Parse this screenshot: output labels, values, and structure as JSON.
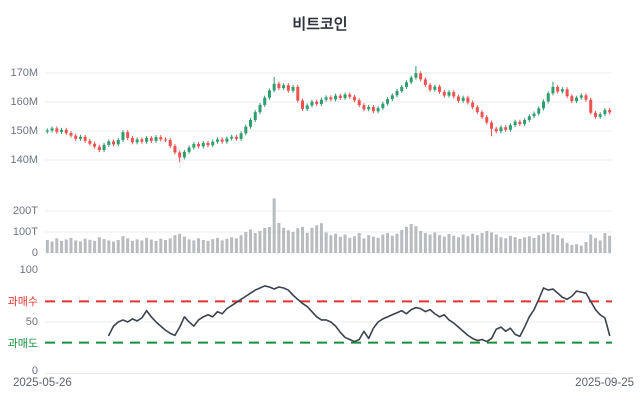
{
  "title": "비트코인",
  "x_axis": {
    "start_date": "2025-05-26",
    "end_date": "2025-09-25"
  },
  "colors": {
    "up": "#2f9e6f",
    "down": "#ef5350",
    "volume_bar": "#b9bcbe",
    "oscillator_line": "#3d434e",
    "overbought_line": "#e5332d",
    "oversold_line": "#17903c",
    "grid": "#ebedf0",
    "axis_label": "#6e7480",
    "title_text": "#2c313c"
  },
  "chart_data": [
    {
      "type": "candlestick",
      "name": "price",
      "title": "비트코인",
      "unit": "M",
      "ylim": [
        131,
        176
      ],
      "yticks": [
        140,
        150,
        160,
        170
      ],
      "ytick_labels": [
        "140M",
        "150M",
        "160M",
        "170M"
      ],
      "x_range": [
        "2025-05-26",
        "2025-09-25"
      ],
      "grid": true,
      "first_open": 149.8,
      "default_wick": 0.7,
      "closes": [
        150.2,
        150.9,
        149.7,
        150.4,
        149.3,
        148.4,
        147.3,
        148.0,
        146.6,
        145.6,
        144.6,
        143.4,
        145.2,
        146.4,
        145.4,
        146.9,
        149.6,
        147.6,
        146.1,
        147.1,
        146.3,
        147.6,
        146.6,
        147.9,
        147.1,
        146.9,
        144.8,
        142.6,
        140.9,
        142.8,
        144.3,
        145.5,
        144.7,
        145.9,
        145.1,
        146.3,
        147.1,
        146.3,
        147.4,
        148.0,
        147.3,
        149.2,
        151.5,
        153.8,
        156.5,
        159.0,
        161.5,
        164.0,
        166.3,
        164.8,
        165.8,
        163.9,
        165.2,
        160.5,
        157.6,
        158.8,
        160.1,
        159.3,
        160.8,
        161.6,
        160.9,
        162.2,
        161.4,
        162.6,
        161.8,
        160.6,
        158.9,
        157.5,
        158.3,
        156.8,
        157.9,
        159.4,
        161.0,
        162.3,
        163.8,
        165.2,
        166.8,
        168.4,
        169.9,
        167.8,
        165.9,
        164.2,
        165.3,
        163.5,
        162.2,
        163.4,
        161.9,
        160.4,
        161.5,
        159.8,
        158.2,
        156.5,
        154.8,
        152.9,
        150.8,
        149.9,
        151.3,
        150.4,
        152.0,
        153.2,
        152.4,
        153.8,
        155.1,
        156.0,
        157.8,
        160.2,
        163.0,
        165.2,
        163.6,
        164.4,
        162.0,
        160.3,
        161.5,
        162.3,
        160.8,
        156.3,
        154.9,
        155.8,
        157.2,
        156.4
      ],
      "special_wicks": {
        "28": {
          "low": 139.2
        },
        "48": {
          "high": 168.6
        },
        "78": {
          "high": 172.4
        },
        "94": {
          "low": 148.2
        },
        "107": {
          "high": 167.0
        }
      }
    },
    {
      "type": "bar",
      "name": "volume",
      "unit": "T",
      "ylim": [
        0,
        280
      ],
      "yticks": [
        0,
        100,
        200
      ],
      "ytick_labels": [
        "0",
        "100T",
        "200T"
      ],
      "grid": true,
      "values": [
        62,
        55,
        70,
        58,
        65,
        72,
        60,
        55,
        68,
        63,
        58,
        75,
        66,
        60,
        54,
        62,
        80,
        70,
        58,
        65,
        60,
        72,
        64,
        58,
        68,
        62,
        70,
        85,
        92,
        78,
        65,
        60,
        70,
        62,
        58,
        66,
        72,
        60,
        68,
        75,
        70,
        85,
        100,
        112,
        95,
        105,
        120,
        124,
        260,
        143,
        120,
        108,
        100,
        118,
        125,
        96,
        120,
        132,
        142,
        98,
        85,
        92,
        78,
        88,
        72,
        80,
        95,
        70,
        85,
        78,
        72,
        88,
        95,
        82,
        92,
        110,
        125,
        138,
        128,
        105,
        95,
        88,
        98,
        85,
        78,
        90,
        82,
        75,
        88,
        80,
        92,
        85,
        95,
        105,
        98,
        88,
        75,
        70,
        82,
        76,
        68,
        75,
        80,
        72,
        85,
        92,
        98,
        90,
        85,
        70,
        48,
        38,
        42,
        35,
        52,
        88,
        72,
        60,
        95,
        82
      ]
    },
    {
      "type": "line",
      "name": "oscillator",
      "ylim": [
        0,
        100
      ],
      "yticks": [
        0,
        50,
        100
      ],
      "ytick_labels": [
        "0",
        "50",
        "100"
      ],
      "grid": true,
      "legend_position": "none",
      "overbought": {
        "label": "과매수",
        "value": 70,
        "color": "#e5332d"
      },
      "oversold": {
        "label": "과매도",
        "value": 30,
        "color": "#17903c"
      },
      "values": [
        null,
        null,
        null,
        null,
        null,
        null,
        null,
        null,
        null,
        null,
        null,
        null,
        null,
        37,
        46,
        50,
        52,
        50,
        53,
        51,
        54,
        61,
        55,
        50,
        46,
        42,
        39,
        37,
        45,
        55,
        50,
        46,
        52,
        55,
        57,
        55,
        60,
        58,
        63,
        66,
        69,
        72,
        75,
        78,
        81,
        83,
        85,
        84,
        82,
        84,
        83,
        81,
        76,
        72,
        68,
        65,
        60,
        55,
        52,
        52,
        50,
        46,
        40,
        35,
        33,
        31,
        33,
        41,
        34,
        44,
        50,
        53,
        55,
        57,
        59,
        61,
        58,
        62,
        64,
        63,
        60,
        62,
        58,
        55,
        57,
        52,
        49,
        45,
        41,
        37,
        34,
        32,
        33,
        31,
        34,
        43,
        45,
        41,
        44,
        38,
        36,
        45,
        55,
        62,
        72,
        83,
        81,
        82,
        78,
        74,
        72,
        75,
        80,
        79,
        78,
        70,
        62,
        57,
        54,
        37
      ]
    }
  ]
}
